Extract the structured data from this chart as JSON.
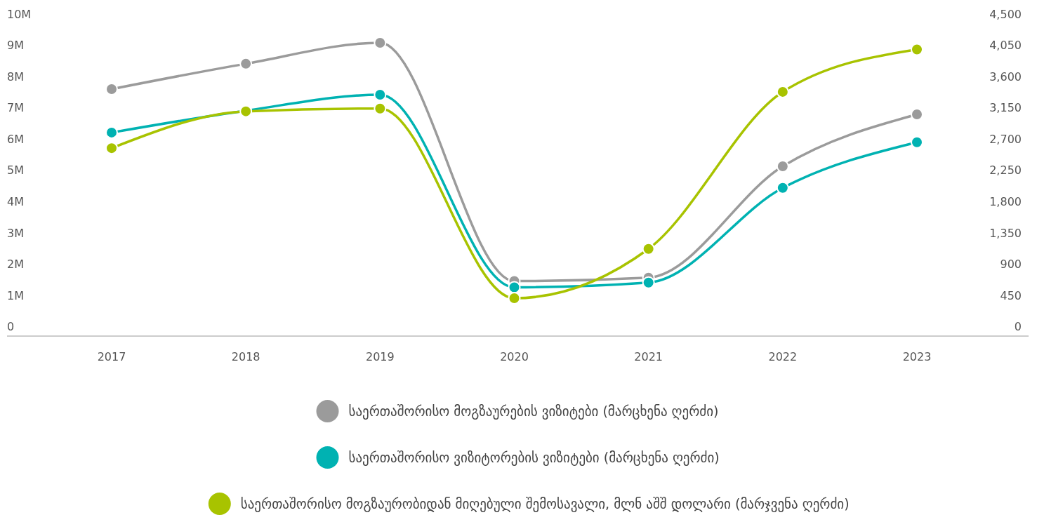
{
  "chart_data": {
    "type": "line",
    "categories": [
      "2017",
      "2018",
      "2019",
      "2020",
      "2021",
      "2022",
      "2023"
    ],
    "series": [
      {
        "name": "საერთაშორისო მოგზაურების ვიზიტები (მარცხენა ღერძი)",
        "color": "#9b9b9b",
        "values": [
          7.6,
          8.41,
          9.08,
          1.46,
          1.57,
          5.13,
          6.79
        ]
      },
      {
        "name": "საერთაშორისო ვიზიტორების ვიზიტები (მარცხენა ღერძი)",
        "color": "#00b2b2",
        "values": [
          6.21,
          6.91,
          7.42,
          1.26,
          1.41,
          4.44,
          5.9
        ]
      },
      {
        "name": "საერთაშორისო მოგზაურობიდან მიღებული შემოსავალი, მლნ აშშ დოლარი (მარჯვენა ღერძი)",
        "color": "#a8c300",
        "axis": "y2",
        "values": [
          2570,
          3100,
          3140,
          410,
          1120,
          3380,
          3990
        ]
      }
    ],
    "ylim": [
      -0.3,
      10
    ],
    "yticks": [
      {
        "value": 0,
        "label": "0"
      },
      {
        "value": 1,
        "label": "1M"
      },
      {
        "value": 2,
        "label": "2M"
      },
      {
        "value": 3,
        "label": "3M"
      },
      {
        "value": 4,
        "label": "4M"
      },
      {
        "value": 5,
        "label": "5M"
      },
      {
        "value": 6,
        "label": "6M"
      },
      {
        "value": 7,
        "label": "7M"
      },
      {
        "value": 8,
        "label": "8M"
      },
      {
        "value": 9,
        "label": "9M"
      },
      {
        "value": 10,
        "label": "10M"
      }
    ],
    "y2lim": [
      -135,
      4500
    ],
    "y2ticks": [
      0,
      450,
      900,
      {
        "value": 1350,
        "label": "1,350"
      },
      {
        "value": 1800,
        "label": "1,800"
      },
      {
        "value": 2250,
        "label": "2,250"
      },
      {
        "value": 2700,
        "label": "2,700"
      },
      {
        "value": 3150,
        "label": "3,150"
      },
      {
        "value": 3600,
        "label": "3,600"
      },
      {
        "value": 4050,
        "label": "4,050"
      },
      {
        "value": 4500,
        "label": "4,500"
      }
    ],
    "marker": "circle",
    "line_style": "solid",
    "grid": false,
    "legend": "bottom"
  }
}
